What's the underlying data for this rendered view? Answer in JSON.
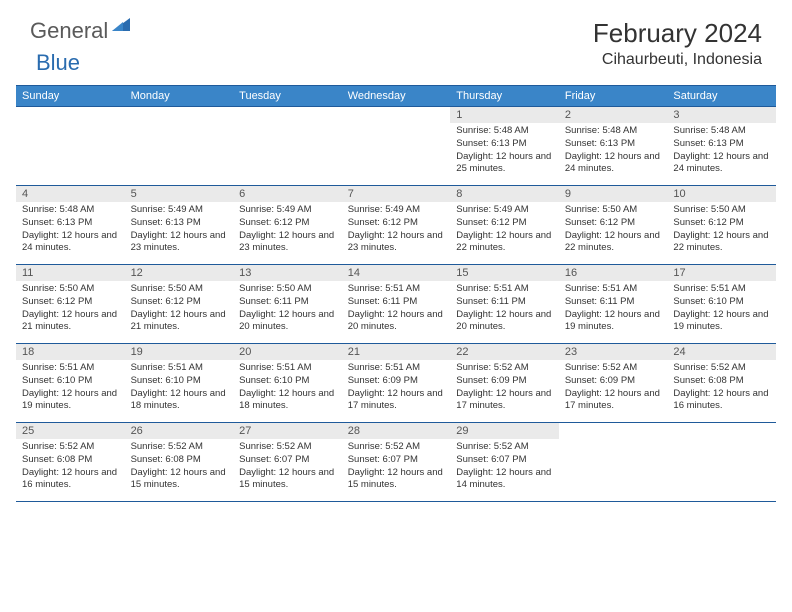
{
  "logo": {
    "part1": "General",
    "part2": "Blue"
  },
  "title": "February 2024",
  "location": "Cihaurbeuti, Indonesia",
  "header_bg": "#3a85c8",
  "border_color": "#1f5a9a",
  "daynum_bg": "#eaeaea",
  "day_headers": [
    "Sunday",
    "Monday",
    "Tuesday",
    "Wednesday",
    "Thursday",
    "Friday",
    "Saturday"
  ],
  "weeks": [
    [
      null,
      null,
      null,
      null,
      {
        "n": "1",
        "sr": "5:48 AM",
        "ss": "6:13 PM",
        "dl": "12 hours and 25 minutes."
      },
      {
        "n": "2",
        "sr": "5:48 AM",
        "ss": "6:13 PM",
        "dl": "12 hours and 24 minutes."
      },
      {
        "n": "3",
        "sr": "5:48 AM",
        "ss": "6:13 PM",
        "dl": "12 hours and 24 minutes."
      }
    ],
    [
      {
        "n": "4",
        "sr": "5:48 AM",
        "ss": "6:13 PM",
        "dl": "12 hours and 24 minutes."
      },
      {
        "n": "5",
        "sr": "5:49 AM",
        "ss": "6:13 PM",
        "dl": "12 hours and 23 minutes."
      },
      {
        "n": "6",
        "sr": "5:49 AM",
        "ss": "6:12 PM",
        "dl": "12 hours and 23 minutes."
      },
      {
        "n": "7",
        "sr": "5:49 AM",
        "ss": "6:12 PM",
        "dl": "12 hours and 23 minutes."
      },
      {
        "n": "8",
        "sr": "5:49 AM",
        "ss": "6:12 PM",
        "dl": "12 hours and 22 minutes."
      },
      {
        "n": "9",
        "sr": "5:50 AM",
        "ss": "6:12 PM",
        "dl": "12 hours and 22 minutes."
      },
      {
        "n": "10",
        "sr": "5:50 AM",
        "ss": "6:12 PM",
        "dl": "12 hours and 22 minutes."
      }
    ],
    [
      {
        "n": "11",
        "sr": "5:50 AM",
        "ss": "6:12 PM",
        "dl": "12 hours and 21 minutes."
      },
      {
        "n": "12",
        "sr": "5:50 AM",
        "ss": "6:12 PM",
        "dl": "12 hours and 21 minutes."
      },
      {
        "n": "13",
        "sr": "5:50 AM",
        "ss": "6:11 PM",
        "dl": "12 hours and 20 minutes."
      },
      {
        "n": "14",
        "sr": "5:51 AM",
        "ss": "6:11 PM",
        "dl": "12 hours and 20 minutes."
      },
      {
        "n": "15",
        "sr": "5:51 AM",
        "ss": "6:11 PM",
        "dl": "12 hours and 20 minutes."
      },
      {
        "n": "16",
        "sr": "5:51 AM",
        "ss": "6:11 PM",
        "dl": "12 hours and 19 minutes."
      },
      {
        "n": "17",
        "sr": "5:51 AM",
        "ss": "6:10 PM",
        "dl": "12 hours and 19 minutes."
      }
    ],
    [
      {
        "n": "18",
        "sr": "5:51 AM",
        "ss": "6:10 PM",
        "dl": "12 hours and 19 minutes."
      },
      {
        "n": "19",
        "sr": "5:51 AM",
        "ss": "6:10 PM",
        "dl": "12 hours and 18 minutes."
      },
      {
        "n": "20",
        "sr": "5:51 AM",
        "ss": "6:10 PM",
        "dl": "12 hours and 18 minutes."
      },
      {
        "n": "21",
        "sr": "5:51 AM",
        "ss": "6:09 PM",
        "dl": "12 hours and 17 minutes."
      },
      {
        "n": "22",
        "sr": "5:52 AM",
        "ss": "6:09 PM",
        "dl": "12 hours and 17 minutes."
      },
      {
        "n": "23",
        "sr": "5:52 AM",
        "ss": "6:09 PM",
        "dl": "12 hours and 17 minutes."
      },
      {
        "n": "24",
        "sr": "5:52 AM",
        "ss": "6:08 PM",
        "dl": "12 hours and 16 minutes."
      }
    ],
    [
      {
        "n": "25",
        "sr": "5:52 AM",
        "ss": "6:08 PM",
        "dl": "12 hours and 16 minutes."
      },
      {
        "n": "26",
        "sr": "5:52 AM",
        "ss": "6:08 PM",
        "dl": "12 hours and 15 minutes."
      },
      {
        "n": "27",
        "sr": "5:52 AM",
        "ss": "6:07 PM",
        "dl": "12 hours and 15 minutes."
      },
      {
        "n": "28",
        "sr": "5:52 AM",
        "ss": "6:07 PM",
        "dl": "12 hours and 15 minutes."
      },
      {
        "n": "29",
        "sr": "5:52 AM",
        "ss": "6:07 PM",
        "dl": "12 hours and 14 minutes."
      },
      null,
      null
    ]
  ],
  "labels": {
    "sunrise": "Sunrise:",
    "sunset": "Sunset:",
    "daylight": "Daylight:"
  }
}
